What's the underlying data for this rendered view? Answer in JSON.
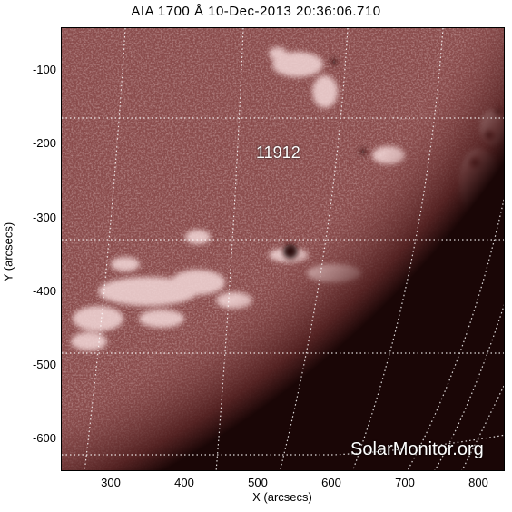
{
  "title": "AIA 1700 Å 10-Dec-2013 20:36:06.710",
  "axes": {
    "xlabel": "X (arcsecs)",
    "ylabel": "Y (arcsecs)",
    "xticks": [
      "300",
      "400",
      "500",
      "600",
      "700",
      "800"
    ],
    "yticks": [
      "-100",
      "-200",
      "-300",
      "-400",
      "-500",
      "-600"
    ],
    "xlim": [
      232,
      838
    ],
    "ylim": [
      -645,
      -40
    ]
  },
  "region_label": "11912",
  "watermark": "SolarMonitor.org",
  "colors": {
    "disk_base": "#8a4c4c",
    "bright": "#f3d8d8",
    "limb_dark": "#1a0606",
    "grid": "#ffffff"
  }
}
